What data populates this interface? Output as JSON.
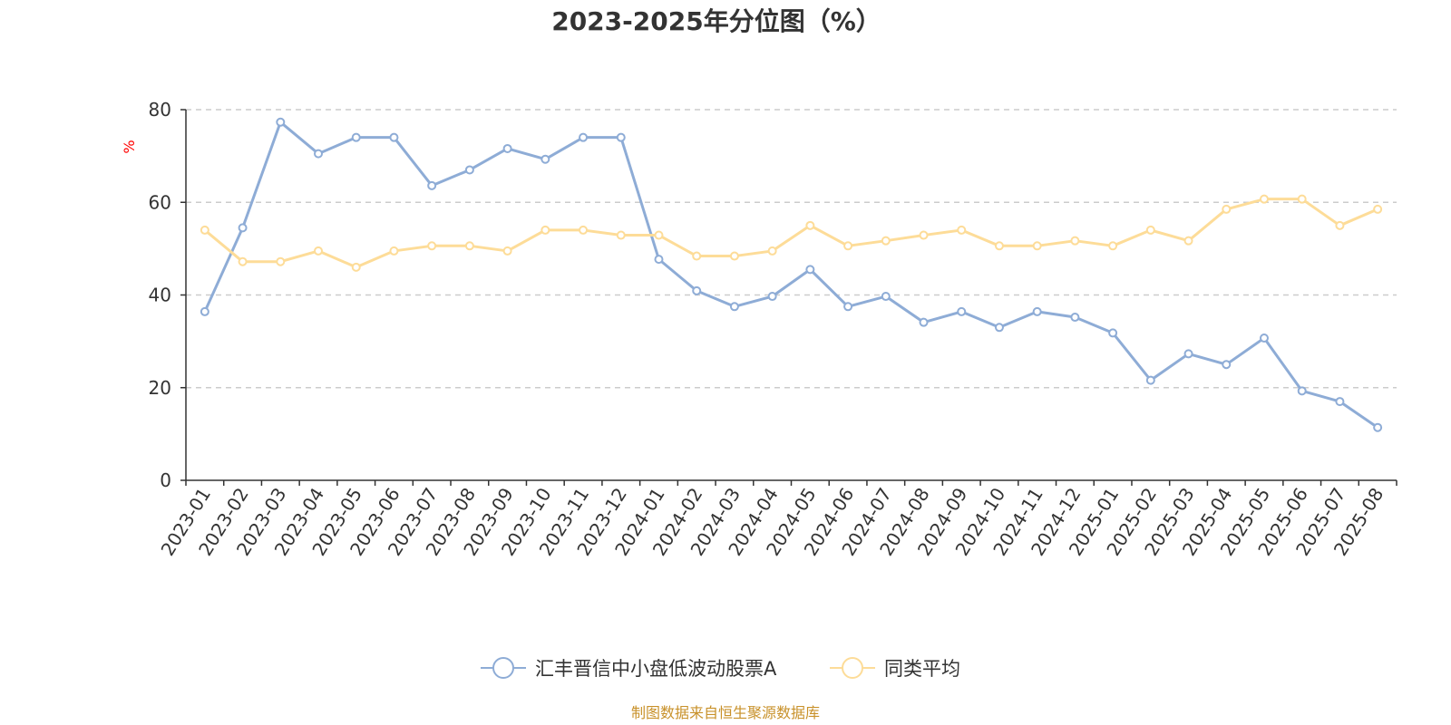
{
  "chart_data": {
    "type": "line",
    "title": "2023-2025年分位图（%）",
    "ylabel": "%",
    "xlabel": "",
    "ylim": [
      0,
      80
    ],
    "yticks": [
      0,
      20,
      40,
      60,
      80
    ],
    "grid": true,
    "legend_position": "bottom",
    "categories": [
      "2023-01",
      "2023-02",
      "2023-03",
      "2023-04",
      "2023-05",
      "2023-06",
      "2023-07",
      "2023-08",
      "2023-09",
      "2023-10",
      "2023-11",
      "2023-12",
      "2024-01",
      "2024-02",
      "2024-03",
      "2024-04",
      "2024-05",
      "2024-06",
      "2024-07",
      "2024-08",
      "2024-09",
      "2024-10",
      "2024-11",
      "2024-12",
      "2025-01",
      "2025-02",
      "2025-03",
      "2025-04",
      "2025-05",
      "2025-06",
      "2025-07",
      "2025-08"
    ],
    "series": [
      {
        "name": "汇丰晋信中小盘低波动股票A",
        "color": "#8eacd6",
        "values": [
          36.4,
          54.5,
          77.3,
          70.5,
          74.0,
          74.0,
          63.6,
          67.0,
          71.6,
          69.3,
          74.0,
          74.0,
          47.7,
          40.9,
          37.5,
          39.7,
          45.5,
          37.5,
          39.7,
          34.1,
          36.4,
          33.0,
          36.4,
          35.2,
          31.8,
          21.6,
          27.3,
          25.0,
          30.7,
          19.3,
          17.0,
          11.4
        ]
      },
      {
        "name": "同类平均",
        "color": "#fddc98",
        "values": [
          54.0,
          47.2,
          47.2,
          49.5,
          46.0,
          49.5,
          50.6,
          50.6,
          49.5,
          54.0,
          54.0,
          52.9,
          52.9,
          48.4,
          48.4,
          49.5,
          55.0,
          50.6,
          51.7,
          52.9,
          54.0,
          50.6,
          50.6,
          51.7,
          50.6,
          54.0,
          51.7,
          58.5,
          60.7,
          60.7,
          55.0,
          58.5
        ]
      }
    ]
  },
  "footer": {
    "source": "制图数据来自恒生聚源数据库"
  }
}
